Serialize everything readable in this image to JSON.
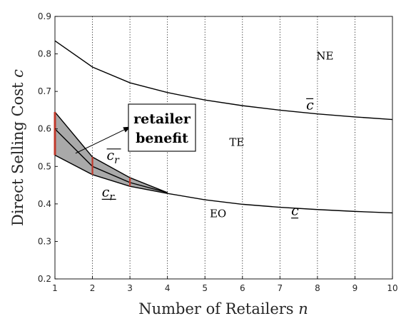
{
  "chart_data": {
    "type": "line",
    "xlabel": "Number of Retailers ",
    "xlabel_var": "n",
    "ylabel": "Direct Selling Cost ",
    "ylabel_var": "c",
    "xlim": [
      1,
      10
    ],
    "ylim": [
      0.2,
      0.9
    ],
    "xticks": [
      1,
      2,
      3,
      4,
      5,
      6,
      7,
      8,
      9,
      10
    ],
    "yticks": [
      0.2,
      0.3,
      0.4,
      0.5,
      0.6,
      0.7,
      0.8,
      0.9
    ],
    "grid": "vertical dotted at each integer n",
    "series": [
      {
        "key": "c_upper",
        "label": "c",
        "bar": "over",
        "color": "#000000",
        "x": [
          1,
          2,
          3,
          4,
          5,
          6,
          7,
          8,
          9,
          10
        ],
        "y": [
          0.835,
          0.765,
          0.723,
          0.697,
          0.677,
          0.662,
          0.65,
          0.64,
          0.632,
          0.625
        ]
      },
      {
        "key": "c_lower",
        "label": "c",
        "bar": "under",
        "color": "#000000",
        "x": [
          4,
          5,
          6,
          7,
          8,
          9,
          10
        ],
        "y": [
          0.428,
          0.411,
          0.399,
          0.391,
          0.385,
          0.38,
          0.376
        ]
      },
      {
        "key": "c_r_mid",
        "color": "#000000",
        "x": [
          1,
          2,
          3,
          4
        ],
        "y": [
          0.6,
          0.5,
          0.457,
          0.43
        ]
      },
      {
        "key": "c_r_upper",
        "label": "c",
        "subscript": "r",
        "bar": "over",
        "color": "#000000",
        "x": [
          1,
          2,
          3,
          4
        ],
        "y": [
          0.645,
          0.525,
          0.47,
          0.43
        ]
      },
      {
        "key": "c_r_lower",
        "label": "c",
        "subscript": "r",
        "bar": "under",
        "color": "#000000",
        "x": [
          1,
          2,
          3,
          4
        ],
        "y": [
          0.53,
          0.478,
          0.447,
          0.428
        ]
      }
    ],
    "shaded_region": {
      "between": [
        "c_r_lower",
        "c_r_upper"
      ],
      "color": "#a9a9a9"
    },
    "red_segments": [
      {
        "x": 1,
        "y0": 0.53,
        "y1": 0.645
      },
      {
        "x": 2,
        "y0": 0.478,
        "y1": 0.525
      },
      {
        "x": 3,
        "y0": 0.447,
        "y1": 0.47
      }
    ],
    "region_labels": [
      {
        "text": "NE",
        "x": 8.2,
        "y": 0.785
      },
      {
        "text": "TE",
        "x": 5.85,
        "y": 0.555
      },
      {
        "text": "EO",
        "x": 5.35,
        "y": 0.365
      }
    ],
    "curve_labels": [
      {
        "series": "c_upper",
        "x": 7.7,
        "y": 0.652
      },
      {
        "series": "c_lower",
        "x": 7.3,
        "y": 0.37
      },
      {
        "series": "c_r_upper",
        "x": 2.38,
        "y": 0.518
      },
      {
        "series": "c_r_lower",
        "x": 2.25,
        "y": 0.42
      }
    ],
    "annotation": {
      "lines": [
        "retailer",
        "benefit"
      ],
      "arrow_from": [
        1.55,
        0.535
      ],
      "arrow_to": [
        3.0,
        0.605
      ]
    }
  }
}
